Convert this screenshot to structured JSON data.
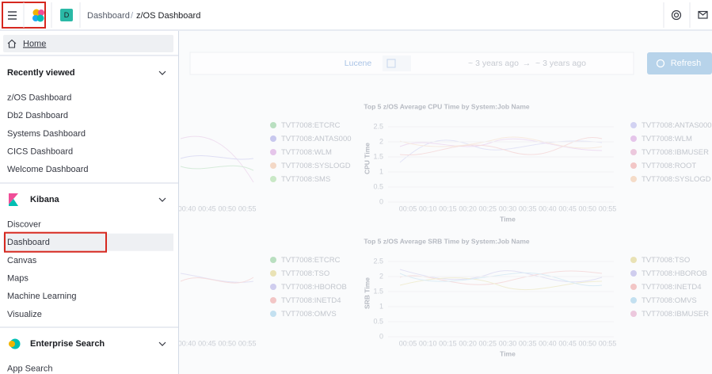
{
  "header": {
    "avatar": "D",
    "breadcrumbs": [
      "Dashboard",
      "z/OS Dashboard"
    ]
  },
  "query_bar": {
    "language": "Lucene",
    "start": "~ 3 years ago",
    "arrow": "→",
    "end": "~ 3 years ago",
    "refresh": "Refresh"
  },
  "nav": {
    "home": "Home",
    "sections": [
      {
        "title": "Recently viewed",
        "items": [
          "z/OS Dashboard",
          "Db2 Dashboard",
          "Systems Dashboard",
          "CICS Dashboard",
          "Welcome Dashboard"
        ]
      },
      {
        "title": "Kibana",
        "items": [
          "Discover",
          "Dashboard",
          "Canvas",
          "Maps",
          "Machine Learning",
          "Visualize"
        ]
      },
      {
        "title": "Enterprise Search",
        "items": [
          "App Search"
        ]
      }
    ]
  },
  "panels": [
    {
      "legend": [
        {
          "label": "TVT7008:ETCRC",
          "color": "#b9dfc0"
        },
        {
          "label": "TVT7008:ANTAS000",
          "color": "#c8c8ee"
        },
        {
          "label": "TVT7008:WLM",
          "color": "#e5c5ea"
        },
        {
          "label": "TVT7008:SYSLOGD",
          "color": "#f3d8c6"
        },
        {
          "label": "TVT7008:SMS",
          "color": "#c9e8c6"
        }
      ],
      "xticks": [
        "00:40",
        "00:45",
        "00:50",
        "00:55"
      ]
    },
    {
      "title": "Top 5 z/OS Average CPU Time by System:Job Name",
      "y_label": "CPU Time",
      "x_label": "Time",
      "yticks": [
        "2.5",
        "2",
        "1.5",
        "1",
        "0.5",
        "0"
      ],
      "xticks": [
        "00:05",
        "00:10",
        "00:15",
        "00:20",
        "00:25",
        "00:30",
        "00:35",
        "00:40",
        "00:45",
        "00:50",
        "00:55"
      ],
      "legend": [
        {
          "label": "TVT7008:ANTAS000",
          "color": "#d2d2f2"
        },
        {
          "label": "TVT7008:WLM",
          "color": "#e5c5ea"
        },
        {
          "label": "TVT7008:IBMUSER",
          "color": "#ecc8dd"
        },
        {
          "label": "TVT7008:ROOT",
          "color": "#f2c6c6"
        },
        {
          "label": "TVT7008:SYSLOGD",
          "color": "#f5dcc8"
        }
      ]
    },
    {
      "legend": [
        {
          "label": "TVT7008:ETCRC",
          "color": "#b9dfc0"
        },
        {
          "label": "TVT7008:TSO",
          "color": "#e9e2b5"
        },
        {
          "label": "TVT7008:HBOROB",
          "color": "#cfcdee"
        },
        {
          "label": "TVT7008:INETD4",
          "color": "#f2c6c6"
        },
        {
          "label": "TVT7008:OMVS",
          "color": "#c3e0f0"
        }
      ],
      "xticks": [
        "00:40",
        "00:45",
        "00:50",
        "00:55"
      ]
    },
    {
      "title": "Top 5 z/OS Average SRB Time by System:Job Name",
      "y_label": "SRB Time",
      "x_label": "Time",
      "yticks": [
        "2.5",
        "2",
        "1.5",
        "1",
        "0.5",
        "0"
      ],
      "xticks": [
        "00:05",
        "00:10",
        "00:15",
        "00:20",
        "00:25",
        "00:30",
        "00:35",
        "00:40",
        "00:45",
        "00:50",
        "00:55"
      ],
      "legend": [
        {
          "label": "TVT7008:TSO",
          "color": "#e9e2b5"
        },
        {
          "label": "TVT7008:HBOROB",
          "color": "#cfcdee"
        },
        {
          "label": "TVT7008:INETD4",
          "color": "#f2c6c6"
        },
        {
          "label": "TVT7008:OMVS",
          "color": "#c3e0f0"
        },
        {
          "label": "TVT7008:IBMUSER",
          "color": "#ecc8dd"
        }
      ]
    }
  ]
}
